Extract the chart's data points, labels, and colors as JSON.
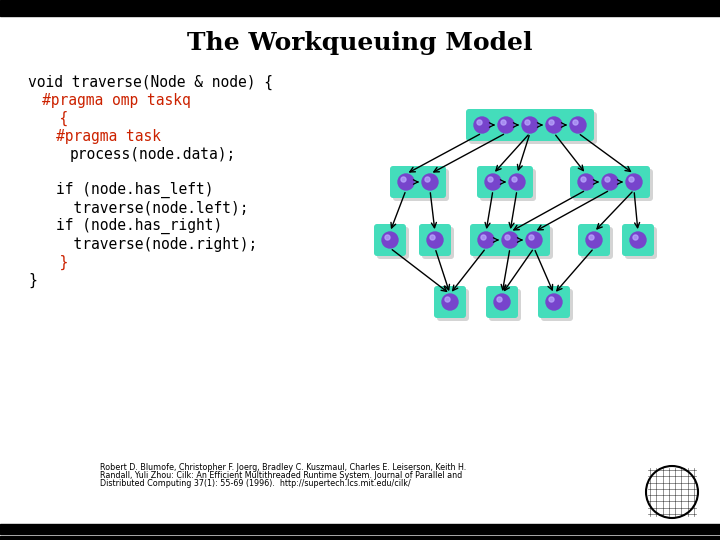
{
  "title": "The Workqueuing Model",
  "background_color": "#ffffff",
  "code_lines": [
    {
      "text": "void traverse(Node & node) {",
      "color": "#000000",
      "indent": 0
    },
    {
      "text": "#pragma omp taskq",
      "color": "#cc2200",
      "indent": 1
    },
    {
      "text": "  {",
      "color": "#cc2200",
      "indent": 1
    },
    {
      "text": "#pragma task",
      "color": "#cc2200",
      "indent": 2
    },
    {
      "text": "process(node.data);",
      "color": "#000000",
      "indent": 3
    },
    {
      "text": "",
      "color": "#000000",
      "indent": 0
    },
    {
      "text": "if (node.has_left)",
      "color": "#000000",
      "indent": 2
    },
    {
      "text": "  traverse(node.left);",
      "color": "#000000",
      "indent": 2
    },
    {
      "text": "if (node.has_right)",
      "color": "#000000",
      "indent": 2
    },
    {
      "text": "  traverse(node.right);",
      "color": "#000000",
      "indent": 2
    },
    {
      "text": "  }",
      "color": "#cc2200",
      "indent": 1
    },
    {
      "text": "}",
      "color": "#000000",
      "indent": 0
    }
  ],
  "node_color": "#7744cc",
  "queue_color": "#44ddbb",
  "shadow_color": "#aaaaaa",
  "citation_line1": "Robert D. Blumofe, Christopher F. Joerg, Bradley C. Kuszmaul, Charles ",
  "citation_bold1": "E. Leiserson",
  "citation_line1b": ", Keith H.",
  "citation_line2": "Randall, Yuli Zhou: ",
  "citation_italic2": "Cilk",
  "citation_line2b": ": An Efficient Multithreaded Runtime System. ",
  "citation_bold2": "Journal of Parallel and",
  "citation_line3": "Distributed Computing",
  "citation_bold3": " 37(1): 55-69 (1996). ",
  "citation_url": "http://supertech.lcs.mit.edu/cilk/"
}
